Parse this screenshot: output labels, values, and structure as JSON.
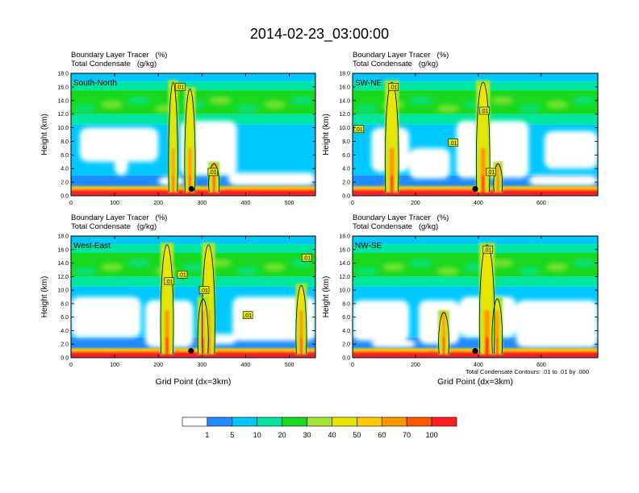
{
  "title": "2014-02-23_03:00:00",
  "colors": {
    "levels": [
      "#ffffff",
      "#1e8cff",
      "#00c8ff",
      "#00e6a0",
      "#18d81e",
      "#a0e632",
      "#e6e600",
      "#ffc800",
      "#ff9600",
      "#ff5a00",
      "#ff1e1e"
    ]
  },
  "colorbar": {
    "labels": [
      "1",
      "5",
      "10",
      "20",
      "30",
      "40",
      "50",
      "60",
      "70",
      "100"
    ]
  },
  "footnote": "Total Condensate Contours: .01 to .01 by .000",
  "chart_data": [
    {
      "type": "heatmap",
      "label_line1": "Boundary Layer Tracer   (%)",
      "label_line2": "Total Condensate   (g/kg)",
      "section": "South-North",
      "ylabel": "Height (km)",
      "xlabel": "",
      "xlim": [
        0,
        560
      ],
      "ylim": [
        0,
        18
      ],
      "x_ticks": [
        0,
        100,
        200,
        300,
        400,
        500
      ],
      "y_ticks": [
        "0.0",
        "2.0",
        "4.0",
        "6.0",
        "8.0",
        "10.0",
        "12.0",
        "14.0",
        "16.0",
        "18.0"
      ],
      "contour_labels": [
        {
          "x": 250,
          "y": 16.0,
          "text": ".01"
        },
        {
          "x": 325,
          "y": 3.5,
          "text": ".01"
        }
      ],
      "marker": {
        "x": 276,
        "y": 1.0
      },
      "white_regions": [
        [
          20,
          5,
          200,
          10
        ],
        [
          100,
          3,
          130,
          6
        ],
        [
          250,
          3,
          380,
          11
        ],
        [
          200,
          1.5,
          260,
          2.8
        ],
        [
          360,
          1.5,
          560,
          3.4
        ]
      ],
      "convective_columns": [
        [
          228,
          240,
          17
        ],
        [
          265,
          280,
          16
        ],
        [
          320,
          335,
          5
        ]
      ]
    },
    {
      "type": "heatmap",
      "label_line1": "Boundary Layer Tracer   (%)",
      "label_line2": "Total Condensate   (g/kg)",
      "section": "SW-NE",
      "ylabel": "Height (km)",
      "xlabel": "",
      "xlim": [
        0,
        780
      ],
      "ylim": [
        0,
        18
      ],
      "x_ticks": [
        0,
        200,
        400,
        600
      ],
      "y_ticks": [
        "0.0",
        "2.0",
        "4.0",
        "6.0",
        "8.0",
        "10.0",
        "12.0",
        "14.0",
        "16.0",
        "18.0"
      ],
      "contour_labels": [
        {
          "x": 130,
          "y": 16.0,
          "text": ".01"
        },
        {
          "x": 420,
          "y": 12.5,
          "text": ".01"
        },
        {
          "x": 320,
          "y": 7.8,
          "text": ".01"
        },
        {
          "x": 440,
          "y": 3.5,
          "text": ".01"
        },
        {
          "x": 20,
          "y": 9.8,
          "text": ".01"
        }
      ],
      "marker": {
        "x": 390,
        "y": 1.0
      },
      "white_regions": [
        [
          60,
          3.5,
          180,
          10
        ],
        [
          180,
          2.5,
          310,
          7
        ],
        [
          330,
          2.6,
          560,
          11
        ],
        [
          610,
          4,
          780,
          9.5
        ],
        [
          560,
          1.5,
          780,
          3
        ]
      ],
      "convective_columns": [
        [
          110,
          140,
          17
        ],
        [
          400,
          430,
          17
        ],
        [
          455,
          470,
          5
        ]
      ]
    },
    {
      "type": "heatmap",
      "label_line1": "Boundary Layer Tracer   (%)",
      "label_line2": "Total Condensate   (g/kg)",
      "section": "West-East",
      "ylabel": "Height (km)",
      "xlabel": "Grid Point (dx=3km)",
      "xlim": [
        0,
        560
      ],
      "ylim": [
        0,
        18
      ],
      "x_ticks": [
        0,
        100,
        200,
        300,
        400,
        500
      ],
      "y_ticks": [
        "0.0",
        "2.0",
        "4.0",
        "6.0",
        "8.0",
        "10.0",
        "12.0",
        "14.0",
        "16.0",
        "18.0"
      ],
      "contour_labels": [
        {
          "x": 255,
          "y": 12.3,
          "text": ".01"
        },
        {
          "x": 225,
          "y": 11.3,
          "text": ".01"
        },
        {
          "x": 305,
          "y": 10.0,
          "text": ".01"
        },
        {
          "x": 405,
          "y": 6.3,
          "text": ".01"
        },
        {
          "x": 540,
          "y": 14.8,
          "text": ".01"
        }
      ],
      "marker": {
        "x": 275,
        "y": 1.0
      },
      "white_regions": [
        [
          0,
          3,
          160,
          9
        ],
        [
          170,
          1.5,
          280,
          8.5
        ],
        [
          370,
          2.5,
          560,
          9
        ],
        [
          300,
          2.0,
          380,
          3.5
        ]
      ],
      "convective_columns": [
        [
          210,
          230,
          17
        ],
        [
          305,
          325,
          17
        ],
        [
          295,
          310,
          9
        ],
        [
          520,
          535,
          11
        ]
      ]
    },
    {
      "type": "heatmap",
      "label_line1": "Boundary Layer Tracer   (%)",
      "label_line2": "Total Condensate   (g/kg)",
      "section": "NW-SE",
      "ylabel": "Height (km)",
      "xlabel": "Grid Point (dx=3km)",
      "xlim": [
        0,
        780
      ],
      "ylim": [
        0,
        18
      ],
      "x_ticks": [
        0,
        200,
        400,
        600
      ],
      "y_ticks": [
        "0.0",
        "2.0",
        "4.0",
        "6.0",
        "8.0",
        "10.0",
        "12.0",
        "14.0",
        "16.0",
        "18.0"
      ],
      "contour_labels": [
        {
          "x": 430,
          "y": 16.0,
          "text": ".01"
        }
      ],
      "marker": {
        "x": 390,
        "y": 1.0
      },
      "white_regions": [
        [
          0,
          2.5,
          180,
          8.5
        ],
        [
          210,
          2,
          340,
          8.5
        ],
        [
          340,
          3,
          520,
          9
        ],
        [
          520,
          1.5,
          780,
          8.5
        ],
        [
          60,
          1.5,
          200,
          2.6
        ]
      ],
      "convective_columns": [
        [
          410,
          445,
          17
        ],
        [
          450,
          470,
          9
        ],
        [
          280,
          300,
          7
        ]
      ]
    }
  ]
}
